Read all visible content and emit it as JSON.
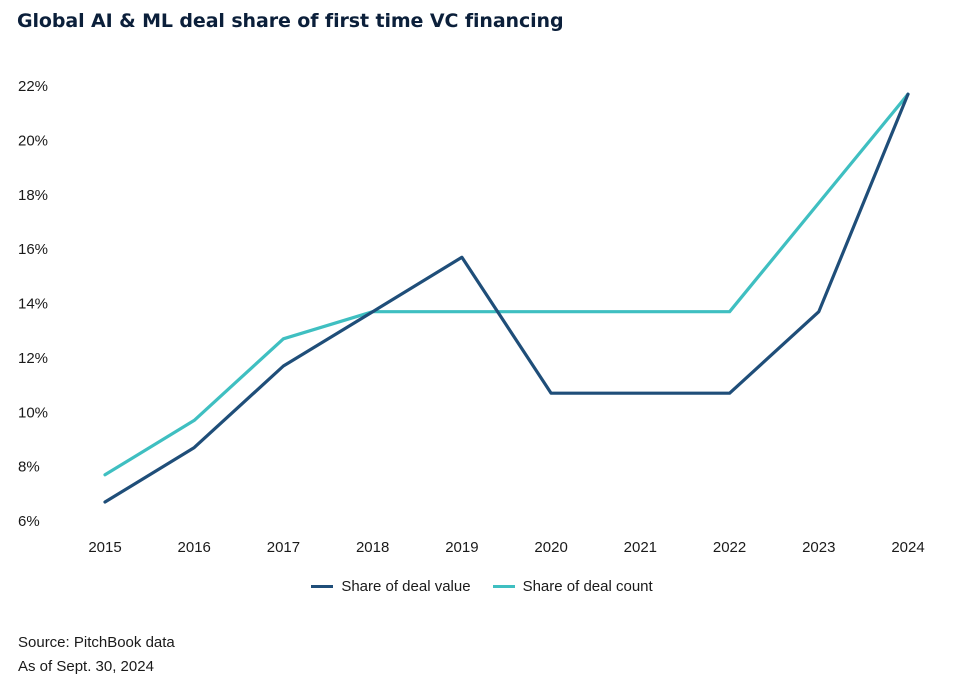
{
  "chart_data": {
    "type": "line",
    "title": "Global AI & ML deal share of first time VC financing",
    "x": [
      "2015",
      "2016",
      "2017",
      "2018",
      "2019",
      "2020",
      "2021",
      "2022",
      "2023",
      "2024"
    ],
    "series": [
      {
        "name": "Share of deal value",
        "color": "#1f4e79",
        "values": [
          6.7,
          8.7,
          11.7,
          13.7,
          15.7,
          10.7,
          10.7,
          10.7,
          13.7,
          21.7
        ]
      },
      {
        "name": "Share of deal count",
        "color": "#3fbfc1",
        "values": [
          7.7,
          9.7,
          12.7,
          13.7,
          13.7,
          13.7,
          13.7,
          13.7,
          17.7,
          21.7
        ]
      }
    ],
    "yticks": [
      "6%",
      "8%",
      "10%",
      "12%",
      "14%",
      "16%",
      "18%",
      "20%",
      "22%"
    ],
    "ylim": [
      6,
      22
    ],
    "xlabel": "",
    "ylabel": "",
    "grid": false,
    "legend_position": "bottom-center"
  },
  "footer": {
    "source": "Source: PitchBook data",
    "as_of": "As of Sept. 30, 2024"
  }
}
